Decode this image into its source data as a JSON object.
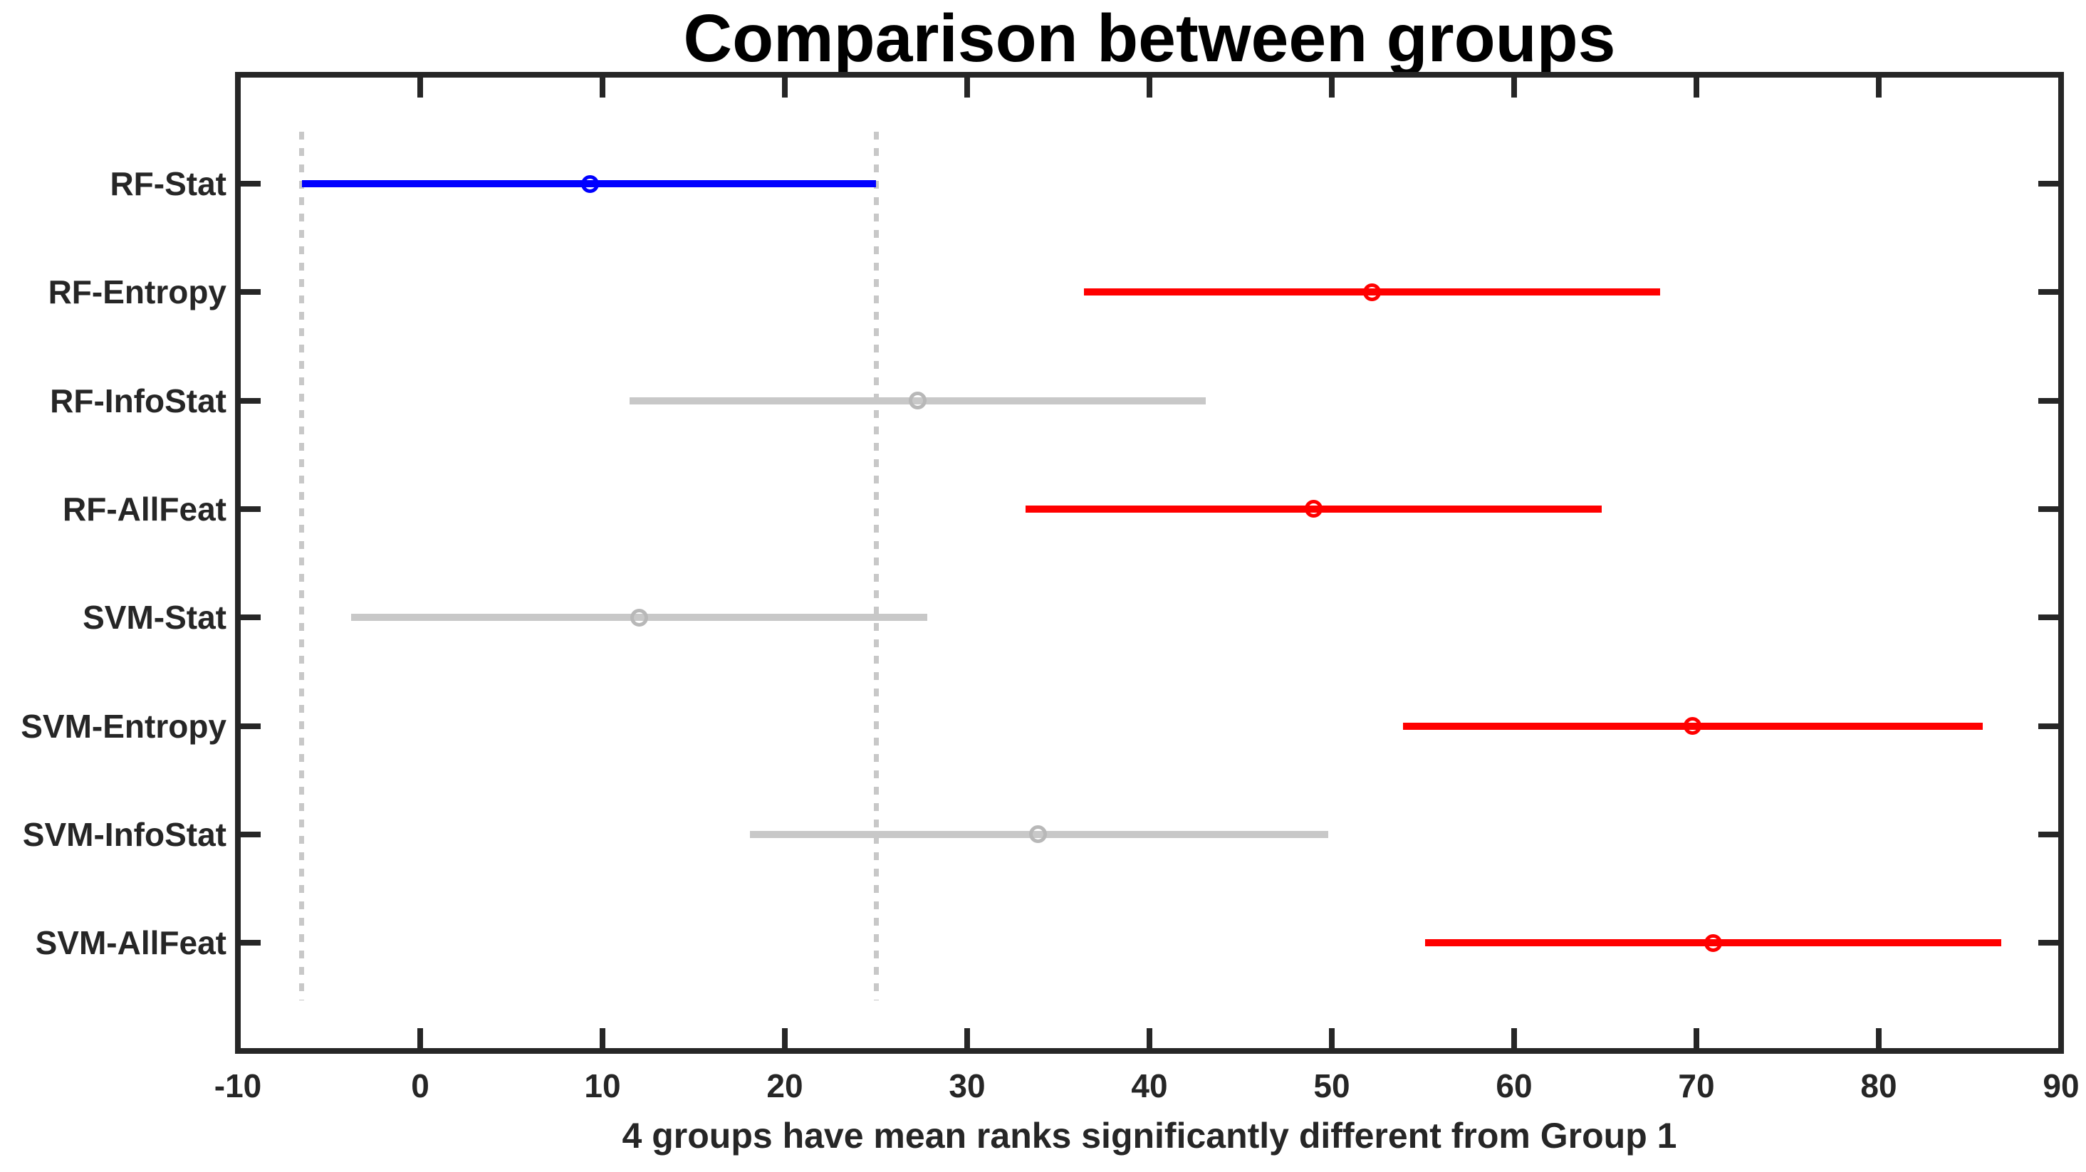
{
  "title": "Comparison between groups",
  "xlabel": "4 groups have mean ranks significantly different from Group 1",
  "chart_data": {
    "type": "scatter",
    "subtype": "horizontal-mean-rank-comparison-intervals",
    "title": "Comparison between groups",
    "xlabel": "4 groups have mean ranks significantly different from Group 1",
    "ylabel": "",
    "xlim": [
      -10,
      90
    ],
    "x_ticks": [
      -10,
      0,
      10,
      20,
      30,
      40,
      50,
      60,
      70,
      80,
      90
    ],
    "categories": [
      "RF-Stat",
      "RF-Entropy",
      "RF-InfoStat",
      "RF-AllFeat",
      "SVM-Stat",
      "SVM-Entropy",
      "SVM-InfoStat",
      "SVM-AllFeat"
    ],
    "groups": [
      {
        "label": "RF-Stat",
        "mean": 9.3,
        "ci": [
          -6.5,
          25.0
        ],
        "status": "selected"
      },
      {
        "label": "RF-Entropy",
        "mean": 52.2,
        "ci": [
          36.4,
          68.0
        ],
        "status": "significant"
      },
      {
        "label": "RF-InfoStat",
        "mean": 27.3,
        "ci": [
          11.5,
          43.1
        ],
        "status": "nonsignificant"
      },
      {
        "label": "RF-AllFeat",
        "mean": 49.0,
        "ci": [
          33.2,
          64.8
        ],
        "status": "significant"
      },
      {
        "label": "SVM-Stat",
        "mean": 12.0,
        "ci": [
          -3.8,
          27.8
        ],
        "status": "nonsignificant"
      },
      {
        "label": "SVM-Entropy",
        "mean": 69.8,
        "ci": [
          53.9,
          85.7
        ],
        "status": "significant"
      },
      {
        "label": "SVM-InfoStat",
        "mean": 33.9,
        "ci": [
          18.1,
          49.8
        ],
        "status": "nonsignificant"
      },
      {
        "label": "SVM-AllFeat",
        "mean": 70.9,
        "ci": [
          55.1,
          86.7
        ],
        "status": "significant"
      }
    ],
    "reference_lines_x": [
      -6.5,
      25.0
    ],
    "grid": false,
    "legend_position": "none",
    "colors": {
      "selected": "#0000FF",
      "significant": "#FF0000",
      "nonsignificant": "#C8C8C8",
      "marker_nonsignificant": "#B8B8B8",
      "reference": "#C8C8C8",
      "axis": "#262626",
      "title_text": "#000000",
      "background": "#FFFFFF"
    }
  }
}
